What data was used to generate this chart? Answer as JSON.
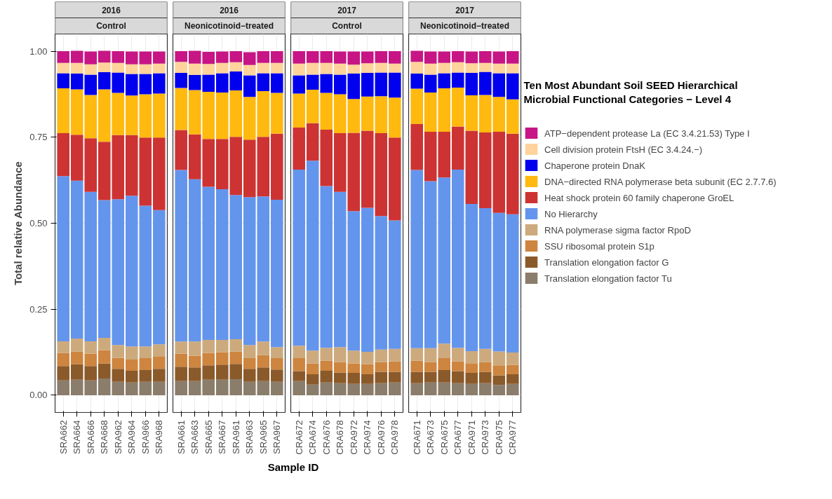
{
  "chart_data": [
    {
      "type": "bar",
      "stacked": true,
      "title": "2016",
      "subtitle": "Control",
      "ylabel": "Total relative Abundance",
      "grid": true,
      "categories": [
        "SRA662",
        "SRA664",
        "SRA666",
        "SRA668",
        "SRA962",
        "SRA964",
        "SRA966",
        "SRA968"
      ],
      "ylim": [
        -0.05,
        1.05
      ],
      "yticks": [
        {
          "value": 0,
          "label": "0.00"
        },
        {
          "value": 0.25,
          "label": "0.25"
        },
        {
          "value": 0.5,
          "label": "0.50"
        },
        {
          "value": 0.75,
          "label": "0.75"
        },
        {
          "value": 1,
          "label": "1.00"
        }
      ],
      "series": [
        {
          "color": "#8b7d6b",
          "values": [
            0.043,
            0.045,
            0.043,
            0.049,
            0.039,
            0.037,
            0.039,
            0.039
          ]
        },
        {
          "color": "#8b5a2b",
          "values": [
            0.042,
            0.045,
            0.042,
            0.043,
            0.038,
            0.034,
            0.034,
            0.038
          ]
        },
        {
          "color": "#cd853f",
          "values": [
            0.038,
            0.037,
            0.036,
            0.039,
            0.032,
            0.033,
            0.035,
            0.035
          ]
        },
        {
          "color": "#cdaa7d",
          "values": [
            0.034,
            0.038,
            0.036,
            0.036,
            0.037,
            0.038,
            0.034,
            0.036
          ]
        },
        {
          "color": "#6495ed",
          "values": [
            0.48,
            0.459,
            0.434,
            0.4,
            0.424,
            0.438,
            0.409,
            0.39
          ]
        },
        {
          "color": "#cd3333",
          "values": [
            0.125,
            0.133,
            0.156,
            0.17,
            0.186,
            0.176,
            0.198,
            0.211
          ]
        },
        {
          "color": "#ffb90f",
          "values": [
            0.13,
            0.132,
            0.126,
            0.152,
            0.123,
            0.115,
            0.126,
            0.128
          ]
        },
        {
          "color": "#0000ee",
          "values": [
            0.044,
            0.046,
            0.059,
            0.05,
            0.059,
            0.063,
            0.059,
            0.059
          ]
        },
        {
          "color": "#ffd39b",
          "values": [
            0.03,
            0.031,
            0.03,
            0.028,
            0.028,
            0.028,
            0.028,
            0.028
          ]
        },
        {
          "color": "#c71585",
          "values": [
            0.034,
            0.035,
            0.037,
            0.034,
            0.034,
            0.037,
            0.037,
            0.035
          ]
        }
      ]
    },
    {
      "type": "bar",
      "stacked": true,
      "title": "2016",
      "subtitle": "Neonicotinoid−treated",
      "xlabel": "Sample ID",
      "grid": true,
      "tick_labels": "x",
      "categories": [
        "SRA661",
        "SRA663",
        "SRA665",
        "SRA667",
        "SRA961",
        "SRA963",
        "SRA965",
        "SRA967"
      ],
      "ylim": [
        -0.05,
        1.05
      ],
      "yticks": [
        0,
        0.25,
        0.5,
        0.75,
        1
      ],
      "series": [
        {
          "color": "#8b7d6b",
          "values": [
            0.041,
            0.041,
            0.045,
            0.045,
            0.047,
            0.039,
            0.041,
            0.039
          ]
        },
        {
          "color": "#8b5a2b",
          "values": [
            0.042,
            0.04,
            0.042,
            0.044,
            0.044,
            0.038,
            0.04,
            0.036
          ]
        },
        {
          "color": "#cd853f",
          "values": [
            0.038,
            0.034,
            0.036,
            0.036,
            0.036,
            0.031,
            0.036,
            0.033
          ]
        },
        {
          "color": "#cdaa7d",
          "values": [
            0.035,
            0.041,
            0.038,
            0.036,
            0.036,
            0.038,
            0.039,
            0.032
          ]
        },
        {
          "color": "#6495ed",
          "values": [
            0.499,
            0.472,
            0.445,
            0.438,
            0.419,
            0.43,
            0.422,
            0.428
          ]
        },
        {
          "color": "#cd3333",
          "values": [
            0.116,
            0.13,
            0.139,
            0.146,
            0.169,
            0.167,
            0.173,
            0.192
          ]
        },
        {
          "color": "#ffb90f",
          "values": [
            0.122,
            0.129,
            0.137,
            0.135,
            0.135,
            0.124,
            0.133,
            0.119
          ]
        },
        {
          "color": "#0000ee",
          "values": [
            0.044,
            0.044,
            0.05,
            0.056,
            0.055,
            0.063,
            0.052,
            0.057
          ]
        },
        {
          "color": "#ffd39b",
          "values": [
            0.032,
            0.033,
            0.031,
            0.03,
            0.027,
            0.03,
            0.03,
            0.03
          ]
        },
        {
          "color": "#c71585",
          "values": [
            0.031,
            0.037,
            0.035,
            0.033,
            0.032,
            0.037,
            0.034,
            0.034
          ]
        }
      ]
    },
    {
      "type": "bar",
      "stacked": true,
      "title": "2017",
      "subtitle": "Control",
      "grid": true,
      "tick_labels": "x",
      "categories": [
        "CRA672",
        "CRA674",
        "CRA676",
        "CRA678",
        "CRA972",
        "CRA974",
        "CRA976",
        "CRA978"
      ],
      "ylim": [
        -0.05,
        1.05
      ],
      "yticks": [
        0,
        0.25,
        0.5,
        0.75,
        1
      ],
      "series": [
        {
          "color": "#8b7d6b",
          "values": [
            0.041,
            0.031,
            0.037,
            0.035,
            0.033,
            0.033,
            0.035,
            0.037
          ]
        },
        {
          "color": "#8b5a2b",
          "values": [
            0.029,
            0.03,
            0.034,
            0.031,
            0.032,
            0.028,
            0.033,
            0.031
          ]
        },
        {
          "color": "#cd853f",
          "values": [
            0.038,
            0.031,
            0.029,
            0.03,
            0.027,
            0.029,
            0.028,
            0.03
          ]
        },
        {
          "color": "#cdaa7d",
          "values": [
            0.036,
            0.038,
            0.038,
            0.044,
            0.038,
            0.036,
            0.037,
            0.037
          ]
        },
        {
          "color": "#6495ed",
          "values": [
            0.512,
            0.552,
            0.47,
            0.451,
            0.405,
            0.419,
            0.388,
            0.373
          ]
        },
        {
          "color": "#cd3333",
          "values": [
            0.122,
            0.109,
            0.164,
            0.171,
            0.228,
            0.224,
            0.241,
            0.241
          ]
        },
        {
          "color": "#ffb90f",
          "values": [
            0.099,
            0.097,
            0.107,
            0.113,
            0.098,
            0.099,
            0.107,
            0.116
          ]
        },
        {
          "color": "#0000ee",
          "values": [
            0.053,
            0.044,
            0.055,
            0.057,
            0.074,
            0.069,
            0.069,
            0.073
          ]
        },
        {
          "color": "#ffd39b",
          "values": [
            0.034,
            0.034,
            0.032,
            0.032,
            0.026,
            0.028,
            0.028,
            0.026
          ]
        },
        {
          "color": "#c71585",
          "values": [
            0.036,
            0.034,
            0.034,
            0.035,
            0.038,
            0.034,
            0.034,
            0.036
          ]
        }
      ]
    },
    {
      "type": "bar",
      "stacked": true,
      "title": "2017",
      "subtitle": "Neonicotinoid−treated",
      "grid": true,
      "tick_labels": "x",
      "legend": "right",
      "legend_title": "Ten Most Abundant Soil SEED Hierarchical Microbial Functional Categories − Level 4",
      "categories": [
        "CRA671",
        "CRA673",
        "CRA675",
        "CRA677",
        "CRA971",
        "CRA973",
        "CRA975",
        "CRA977"
      ],
      "ylim": [
        -0.05,
        1.05
      ],
      "yticks": [
        0,
        0.25,
        0.5,
        0.75,
        1
      ],
      "series": [
        {
          "name": "Translation elongation factor Tu",
          "color": "#8b7d6b",
          "values": [
            0.035,
            0.037,
            0.037,
            0.035,
            0.033,
            0.035,
            0.03,
            0.033
          ]
        },
        {
          "name": "Translation elongation factor G",
          "color": "#8b5a2b",
          "values": [
            0.033,
            0.031,
            0.036,
            0.035,
            0.032,
            0.033,
            0.028,
            0.028
          ]
        },
        {
          "name": "SSU ribosomal protein S1p",
          "color": "#cd853f",
          "values": [
            0.032,
            0.028,
            0.035,
            0.028,
            0.028,
            0.028,
            0.029,
            0.027
          ]
        },
        {
          "name": "RNA polymerase sigma factor RpoD",
          "color": "#cdaa7d",
          "values": [
            0.037,
            0.041,
            0.042,
            0.04,
            0.035,
            0.039,
            0.04,
            0.036
          ]
        },
        {
          "name": "No Hierarchy",
          "color": "#6495ed",
          "values": [
            0.518,
            0.485,
            0.483,
            0.518,
            0.428,
            0.409,
            0.403,
            0.402
          ]
        },
        {
          "name": "Heat shock protein 60 family chaperone GroEL",
          "color": "#cd3333",
          "values": [
            0.133,
            0.144,
            0.133,
            0.125,
            0.213,
            0.22,
            0.236,
            0.234
          ]
        },
        {
          "name": "DNA−directed RNA polymerase beta subunit (EC 2.7.7.6)",
          "color": "#ffb90f",
          "values": [
            0.103,
            0.114,
            0.126,
            0.113,
            0.103,
            0.109,
            0.101,
            0.1
          ]
        },
        {
          "name": "Chaperone protein DnaK",
          "color": "#0000ee",
          "values": [
            0.044,
            0.052,
            0.044,
            0.044,
            0.065,
            0.067,
            0.069,
            0.076
          ]
        },
        {
          "name": "Cell division protein FtsH (EC 3.4.24.−)",
          "color": "#ffd39b",
          "values": [
            0.034,
            0.032,
            0.03,
            0.03,
            0.028,
            0.026,
            0.028,
            0.028
          ]
        },
        {
          "name": "ATP−dependent protease La (EC 3.4.21.53) Type I",
          "color": "#c71585",
          "values": [
            0.032,
            0.035,
            0.033,
            0.032,
            0.034,
            0.034,
            0.035,
            0.036
          ]
        }
      ]
    }
  ]
}
